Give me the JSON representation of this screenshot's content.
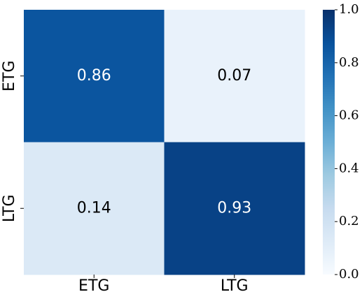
{
  "chart_data": {
    "type": "heatmap",
    "x_categories": [
      "ETG",
      "LTG"
    ],
    "y_categories": [
      "ETG",
      "LTG"
    ],
    "values": [
      [
        0.86,
        0.07
      ],
      [
        0.14,
        0.93
      ]
    ],
    "colormap": "Blues",
    "clim": [
      0,
      1
    ],
    "colorbar_ticks": [
      {
        "value": 0,
        "label": "0.0"
      },
      0.2,
      0.4,
      0.6,
      0.8,
      {
        "value": 1,
        "label": "1.0"
      }
    ]
  }
}
